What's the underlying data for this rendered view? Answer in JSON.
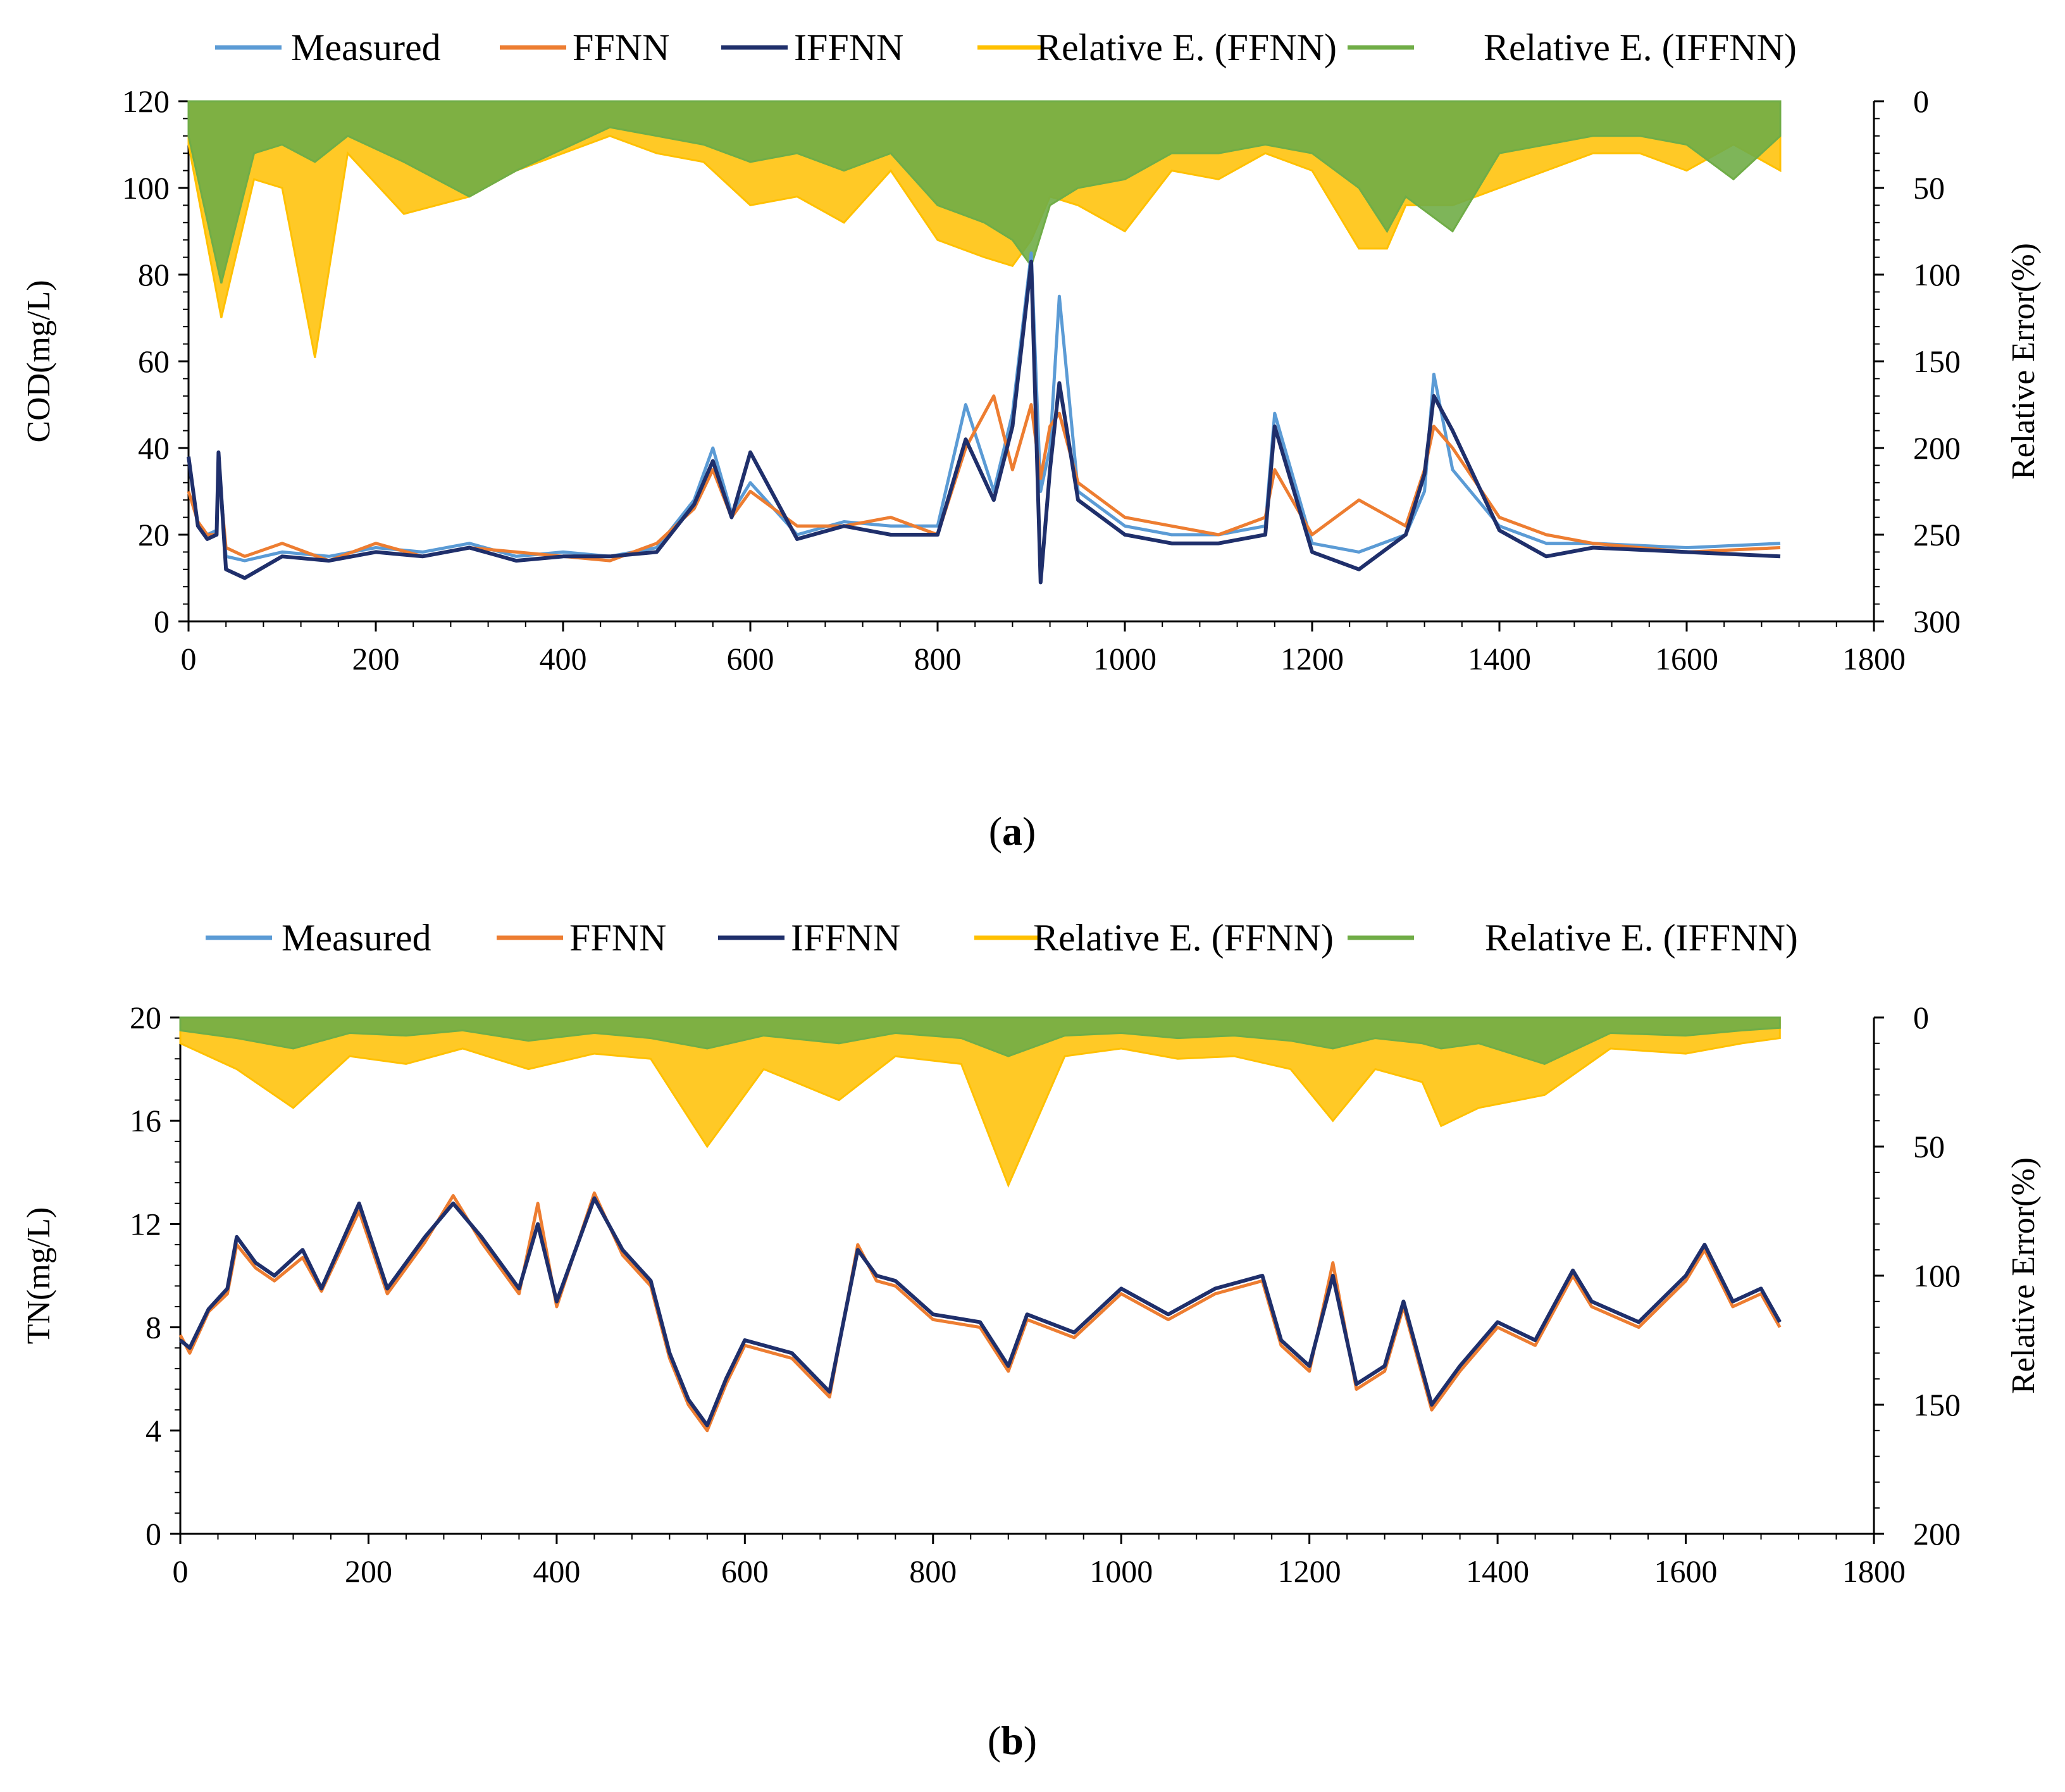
{
  "chart_data": [
    {
      "id": "a",
      "type": "line",
      "panel_label": "a",
      "ylabel_left": "COD(mg/L)",
      "ylabel_right": "Relative Error(%)",
      "xlim": [
        0,
        1800
      ],
      "x_ticks": [
        "0",
        "200",
        "400",
        "600",
        "800",
        "1000",
        "1200",
        "1400",
        "1600",
        "1800"
      ],
      "ylim_left": [
        0,
        120
      ],
      "y_ticks_left": [
        "0",
        "20",
        "40",
        "60",
        "80",
        "100",
        "120"
      ],
      "ylim_right_inverted": [
        0,
        300
      ],
      "y_ticks_right": [
        "0",
        "50",
        "100",
        "150",
        "200",
        "250",
        "300"
      ],
      "legend": [
        "Measured",
        "FFNN",
        "IFFNN",
        "Relative E. (FFNN)",
        "Relative E. (IFFNN)"
      ],
      "colors": [
        "#5b9bd5",
        "#ed7d31",
        "#1f2f6b",
        "#ffc000",
        "#70ad47"
      ],
      "series": [
        {
          "name": "Measured",
          "axis": "left",
          "x": [
            0,
            10,
            20,
            30,
            32,
            40,
            60,
            100,
            150,
            200,
            250,
            300,
            350,
            400,
            450,
            500,
            540,
            560,
            580,
            600,
            650,
            700,
            750,
            800,
            830,
            860,
            880,
            900,
            910,
            920,
            930,
            950,
            1000,
            1050,
            1100,
            1150,
            1160,
            1200,
            1250,
            1300,
            1320,
            1330,
            1350,
            1400,
            1450,
            1500,
            1600,
            1700
          ],
          "values": [
            38,
            22,
            20,
            21,
            38,
            15,
            14,
            16,
            15,
            17,
            16,
            18,
            15,
            16,
            15,
            17,
            28,
            40,
            25,
            32,
            20,
            23,
            22,
            22,
            50,
            30,
            48,
            85,
            30,
            40,
            75,
            30,
            22,
            20,
            20,
            22,
            48,
            18,
            16,
            20,
            30,
            57,
            35,
            22,
            18,
            18,
            17,
            18
          ]
        },
        {
          "name": "FFNN",
          "axis": "left",
          "x": [
            0,
            10,
            20,
            30,
            32,
            40,
            60,
            100,
            150,
            200,
            250,
            300,
            350,
            400,
            450,
            500,
            540,
            560,
            580,
            600,
            650,
            700,
            750,
            800,
            830,
            860,
            880,
            900,
            910,
            920,
            930,
            950,
            1000,
            1050,
            1100,
            1150,
            1160,
            1200,
            1250,
            1300,
            1320,
            1330,
            1350,
            1400,
            1450,
            1500,
            1600,
            1700
          ],
          "values": [
            30,
            23,
            20,
            20,
            35,
            17,
            15,
            18,
            14,
            18,
            15,
            17,
            16,
            15,
            14,
            18,
            26,
            35,
            24,
            30,
            22,
            22,
            24,
            20,
            40,
            52,
            35,
            50,
            33,
            45,
            48,
            32,
            24,
            22,
            20,
            24,
            35,
            20,
            28,
            22,
            35,
            45,
            40,
            24,
            20,
            18,
            16,
            17
          ]
        },
        {
          "name": "IFFNN",
          "axis": "left",
          "x": [
            0,
            10,
            20,
            30,
            32,
            40,
            60,
            100,
            150,
            200,
            250,
            300,
            350,
            400,
            450,
            500,
            540,
            560,
            580,
            600,
            650,
            700,
            750,
            800,
            830,
            860,
            880,
            900,
            910,
            920,
            930,
            950,
            1000,
            1050,
            1100,
            1150,
            1160,
            1200,
            1250,
            1300,
            1320,
            1330,
            1350,
            1400,
            1450,
            1500,
            1600,
            1700
          ],
          "values": [
            38,
            22,
            19,
            20,
            39,
            12,
            10,
            15,
            14,
            16,
            15,
            17,
            14,
            15,
            15,
            16,
            27,
            37,
            24,
            39,
            19,
            22,
            20,
            20,
            42,
            28,
            45,
            83,
            9,
            35,
            55,
            28,
            20,
            18,
            18,
            20,
            45,
            16,
            12,
            20,
            34,
            52,
            44,
            21,
            15,
            17,
            16,
            15
          ]
        },
        {
          "name": "Relative E. (FFNN)",
          "axis": "right",
          "x": [
            0,
            35,
            70,
            100,
            135,
            170,
            230,
            300,
            350,
            450,
            500,
            550,
            600,
            650,
            700,
            750,
            800,
            850,
            880,
            900,
            920,
            950,
            1000,
            1050,
            1100,
            1150,
            1200,
            1250,
            1280,
            1300,
            1350,
            1400,
            1450,
            1500,
            1550,
            1600,
            1650,
            1700
          ],
          "values": [
            25,
            125,
            45,
            50,
            148,
            30,
            65,
            55,
            40,
            20,
            30,
            35,
            60,
            55,
            70,
            40,
            80,
            90,
            95,
            80,
            55,
            60,
            75,
            40,
            45,
            30,
            40,
            85,
            85,
            60,
            60,
            50,
            40,
            30,
            30,
            40,
            25,
            40
          ]
        },
        {
          "name": "Relative E. (IFFNN)",
          "axis": "right",
          "x": [
            0,
            35,
            70,
            100,
            135,
            170,
            230,
            300,
            350,
            450,
            500,
            550,
            600,
            650,
            700,
            750,
            800,
            850,
            880,
            900,
            920,
            950,
            1000,
            1050,
            1100,
            1150,
            1200,
            1250,
            1280,
            1300,
            1350,
            1400,
            1450,
            1500,
            1550,
            1600,
            1650,
            1700
          ],
          "values": [
            20,
            105,
            30,
            25,
            35,
            20,
            35,
            55,
            40,
            15,
            20,
            25,
            35,
            30,
            40,
            30,
            60,
            70,
            80,
            95,
            60,
            50,
            45,
            30,
            30,
            25,
            30,
            50,
            75,
            55,
            75,
            30,
            25,
            20,
            20,
            25,
            45,
            20
          ]
        }
      ]
    },
    {
      "id": "b",
      "type": "line",
      "panel_label": "b",
      "ylabel_left": "TN(mg/L)",
      "ylabel_right": "Relative Error(%)",
      "xlim": [
        0,
        1800
      ],
      "x_ticks": [
        "0",
        "200",
        "400",
        "600",
        "800",
        "1000",
        "1200",
        "1400",
        "1600",
        "1800"
      ],
      "ylim_left": [
        0,
        20
      ],
      "y_ticks_left": [
        "0",
        "4",
        "8",
        "12",
        "16",
        "20"
      ],
      "ylim_right_inverted": [
        0,
        200
      ],
      "y_ticks_right": [
        "0",
        "50",
        "100",
        "150",
        "200"
      ],
      "legend": [
        "Measured",
        "FFNN",
        "IFFNN",
        "Relative E. (FFNN)",
        "Relative E. (IFFNN)"
      ],
      "colors": [
        "#5b9bd5",
        "#ed7d31",
        "#1f2f6b",
        "#ffc000",
        "#70ad47"
      ],
      "series": [
        {
          "name": "Measured",
          "axis": "left",
          "x": [
            0,
            10,
            30,
            50,
            60,
            80,
            100,
            130,
            150,
            190,
            220,
            260,
            290,
            320,
            360,
            380,
            400,
            440,
            470,
            500,
            520,
            540,
            560,
            580,
            600,
            650,
            690,
            720,
            740,
            760,
            800,
            850,
            880,
            900,
            950,
            1000,
            1050,
            1100,
            1150,
            1170,
            1200,
            1225,
            1250,
            1280,
            1300,
            1330,
            1360,
            1400,
            1440,
            1480,
            1500,
            1550,
            1600,
            1620,
            1650,
            1680,
            1700
          ],
          "values": [
            7.5,
            7.2,
            8.7,
            9.5,
            11.5,
            10.5,
            10,
            11,
            9.5,
            12.8,
            9.5,
            11.5,
            12.8,
            11.5,
            9.5,
            12,
            9,
            13,
            11,
            9.8,
            7,
            5.2,
            4.2,
            6,
            7.5,
            7,
            5.5,
            11,
            10,
            9.8,
            8.5,
            8.2,
            6.5,
            8.5,
            7.8,
            9.5,
            8.5,
            9.5,
            10,
            7.5,
            6.5,
            10,
            5.8,
            6.5,
            9,
            5,
            6.5,
            8.2,
            7.5,
            10.2,
            9,
            8.2,
            10,
            11.2,
            9,
            9.5,
            8.2
          ]
        },
        {
          "name": "FFNN",
          "axis": "left",
          "x": [
            0,
            10,
            30,
            50,
            60,
            80,
            100,
            130,
            150,
            190,
            220,
            260,
            290,
            320,
            360,
            380,
            400,
            440,
            470,
            500,
            520,
            540,
            560,
            580,
            600,
            650,
            690,
            720,
            740,
            760,
            800,
            850,
            880,
            900,
            950,
            1000,
            1050,
            1100,
            1150,
            1170,
            1200,
            1225,
            1250,
            1280,
            1300,
            1330,
            1360,
            1400,
            1440,
            1480,
            1500,
            1550,
            1600,
            1620,
            1650,
            1680,
            1700
          ],
          "values": [
            7.7,
            7.0,
            8.6,
            9.3,
            11.2,
            10.3,
            9.8,
            10.7,
            9.4,
            12.5,
            9.3,
            11.3,
            13.1,
            11.3,
            9.3,
            12.8,
            8.8,
            13.2,
            10.8,
            9.6,
            6.8,
            5.0,
            4.0,
            5.8,
            7.3,
            6.8,
            5.3,
            11.2,
            9.8,
            9.6,
            8.3,
            8.0,
            6.3,
            8.3,
            7.6,
            9.3,
            8.3,
            9.3,
            9.8,
            7.3,
            6.3,
            10.5,
            5.6,
            6.3,
            8.8,
            4.8,
            6.3,
            8.0,
            7.3,
            10.0,
            8.8,
            8.0,
            9.8,
            11.0,
            8.8,
            9.3,
            8.0
          ]
        },
        {
          "name": "IFFNN",
          "axis": "left",
          "x": [
            0,
            10,
            30,
            50,
            60,
            80,
            100,
            130,
            150,
            190,
            220,
            260,
            290,
            320,
            360,
            380,
            400,
            440,
            470,
            500,
            520,
            540,
            560,
            580,
            600,
            650,
            690,
            720,
            740,
            760,
            800,
            850,
            880,
            900,
            950,
            1000,
            1050,
            1100,
            1150,
            1170,
            1200,
            1225,
            1250,
            1280,
            1300,
            1330,
            1360,
            1400,
            1440,
            1480,
            1500,
            1550,
            1600,
            1620,
            1650,
            1680,
            1700
          ],
          "values": [
            7.5,
            7.2,
            8.7,
            9.5,
            11.5,
            10.5,
            10,
            11,
            9.5,
            12.8,
            9.5,
            11.5,
            12.8,
            11.5,
            9.5,
            12,
            9,
            13,
            11,
            9.8,
            7,
            5.2,
            4.2,
            6,
            7.5,
            7,
            5.5,
            11,
            10,
            9.8,
            8.5,
            8.2,
            6.5,
            8.5,
            7.8,
            9.5,
            8.5,
            9.5,
            10,
            7.5,
            6.5,
            10,
            5.8,
            6.5,
            9,
            5,
            6.5,
            8.2,
            7.5,
            10.2,
            9,
            8.2,
            10,
            11.2,
            9,
            9.5,
            8.2
          ]
        },
        {
          "name": "Relative E. (FFNN)",
          "axis": "right",
          "x": [
            0,
            60,
            120,
            180,
            240,
            300,
            370,
            440,
            500,
            560,
            620,
            700,
            760,
            830,
            880,
            940,
            1000,
            1060,
            1120,
            1180,
            1225,
            1270,
            1320,
            1340,
            1380,
            1450,
            1520,
            1600,
            1660,
            1700
          ],
          "values": [
            10,
            20,
            35,
            15,
            18,
            12,
            20,
            14,
            16,
            50,
            20,
            32,
            15,
            18,
            65,
            15,
            12,
            16,
            15,
            20,
            40,
            20,
            25,
            42,
            35,
            30,
            12,
            14,
            10,
            8
          ]
        },
        {
          "name": "Relative E. (IFFNN)",
          "axis": "right",
          "x": [
            0,
            60,
            120,
            180,
            240,
            300,
            370,
            440,
            500,
            560,
            620,
            700,
            760,
            830,
            880,
            940,
            1000,
            1060,
            1120,
            1180,
            1225,
            1270,
            1320,
            1340,
            1380,
            1450,
            1520,
            1600,
            1660,
            1700
          ],
          "values": [
            5,
            8,
            12,
            6,
            7,
            5,
            9,
            6,
            8,
            12,
            7,
            10,
            6,
            8,
            15,
            7,
            6,
            8,
            7,
            9,
            12,
            8,
            10,
            12,
            10,
            18,
            6,
            7,
            5,
            4
          ]
        }
      ]
    }
  ]
}
